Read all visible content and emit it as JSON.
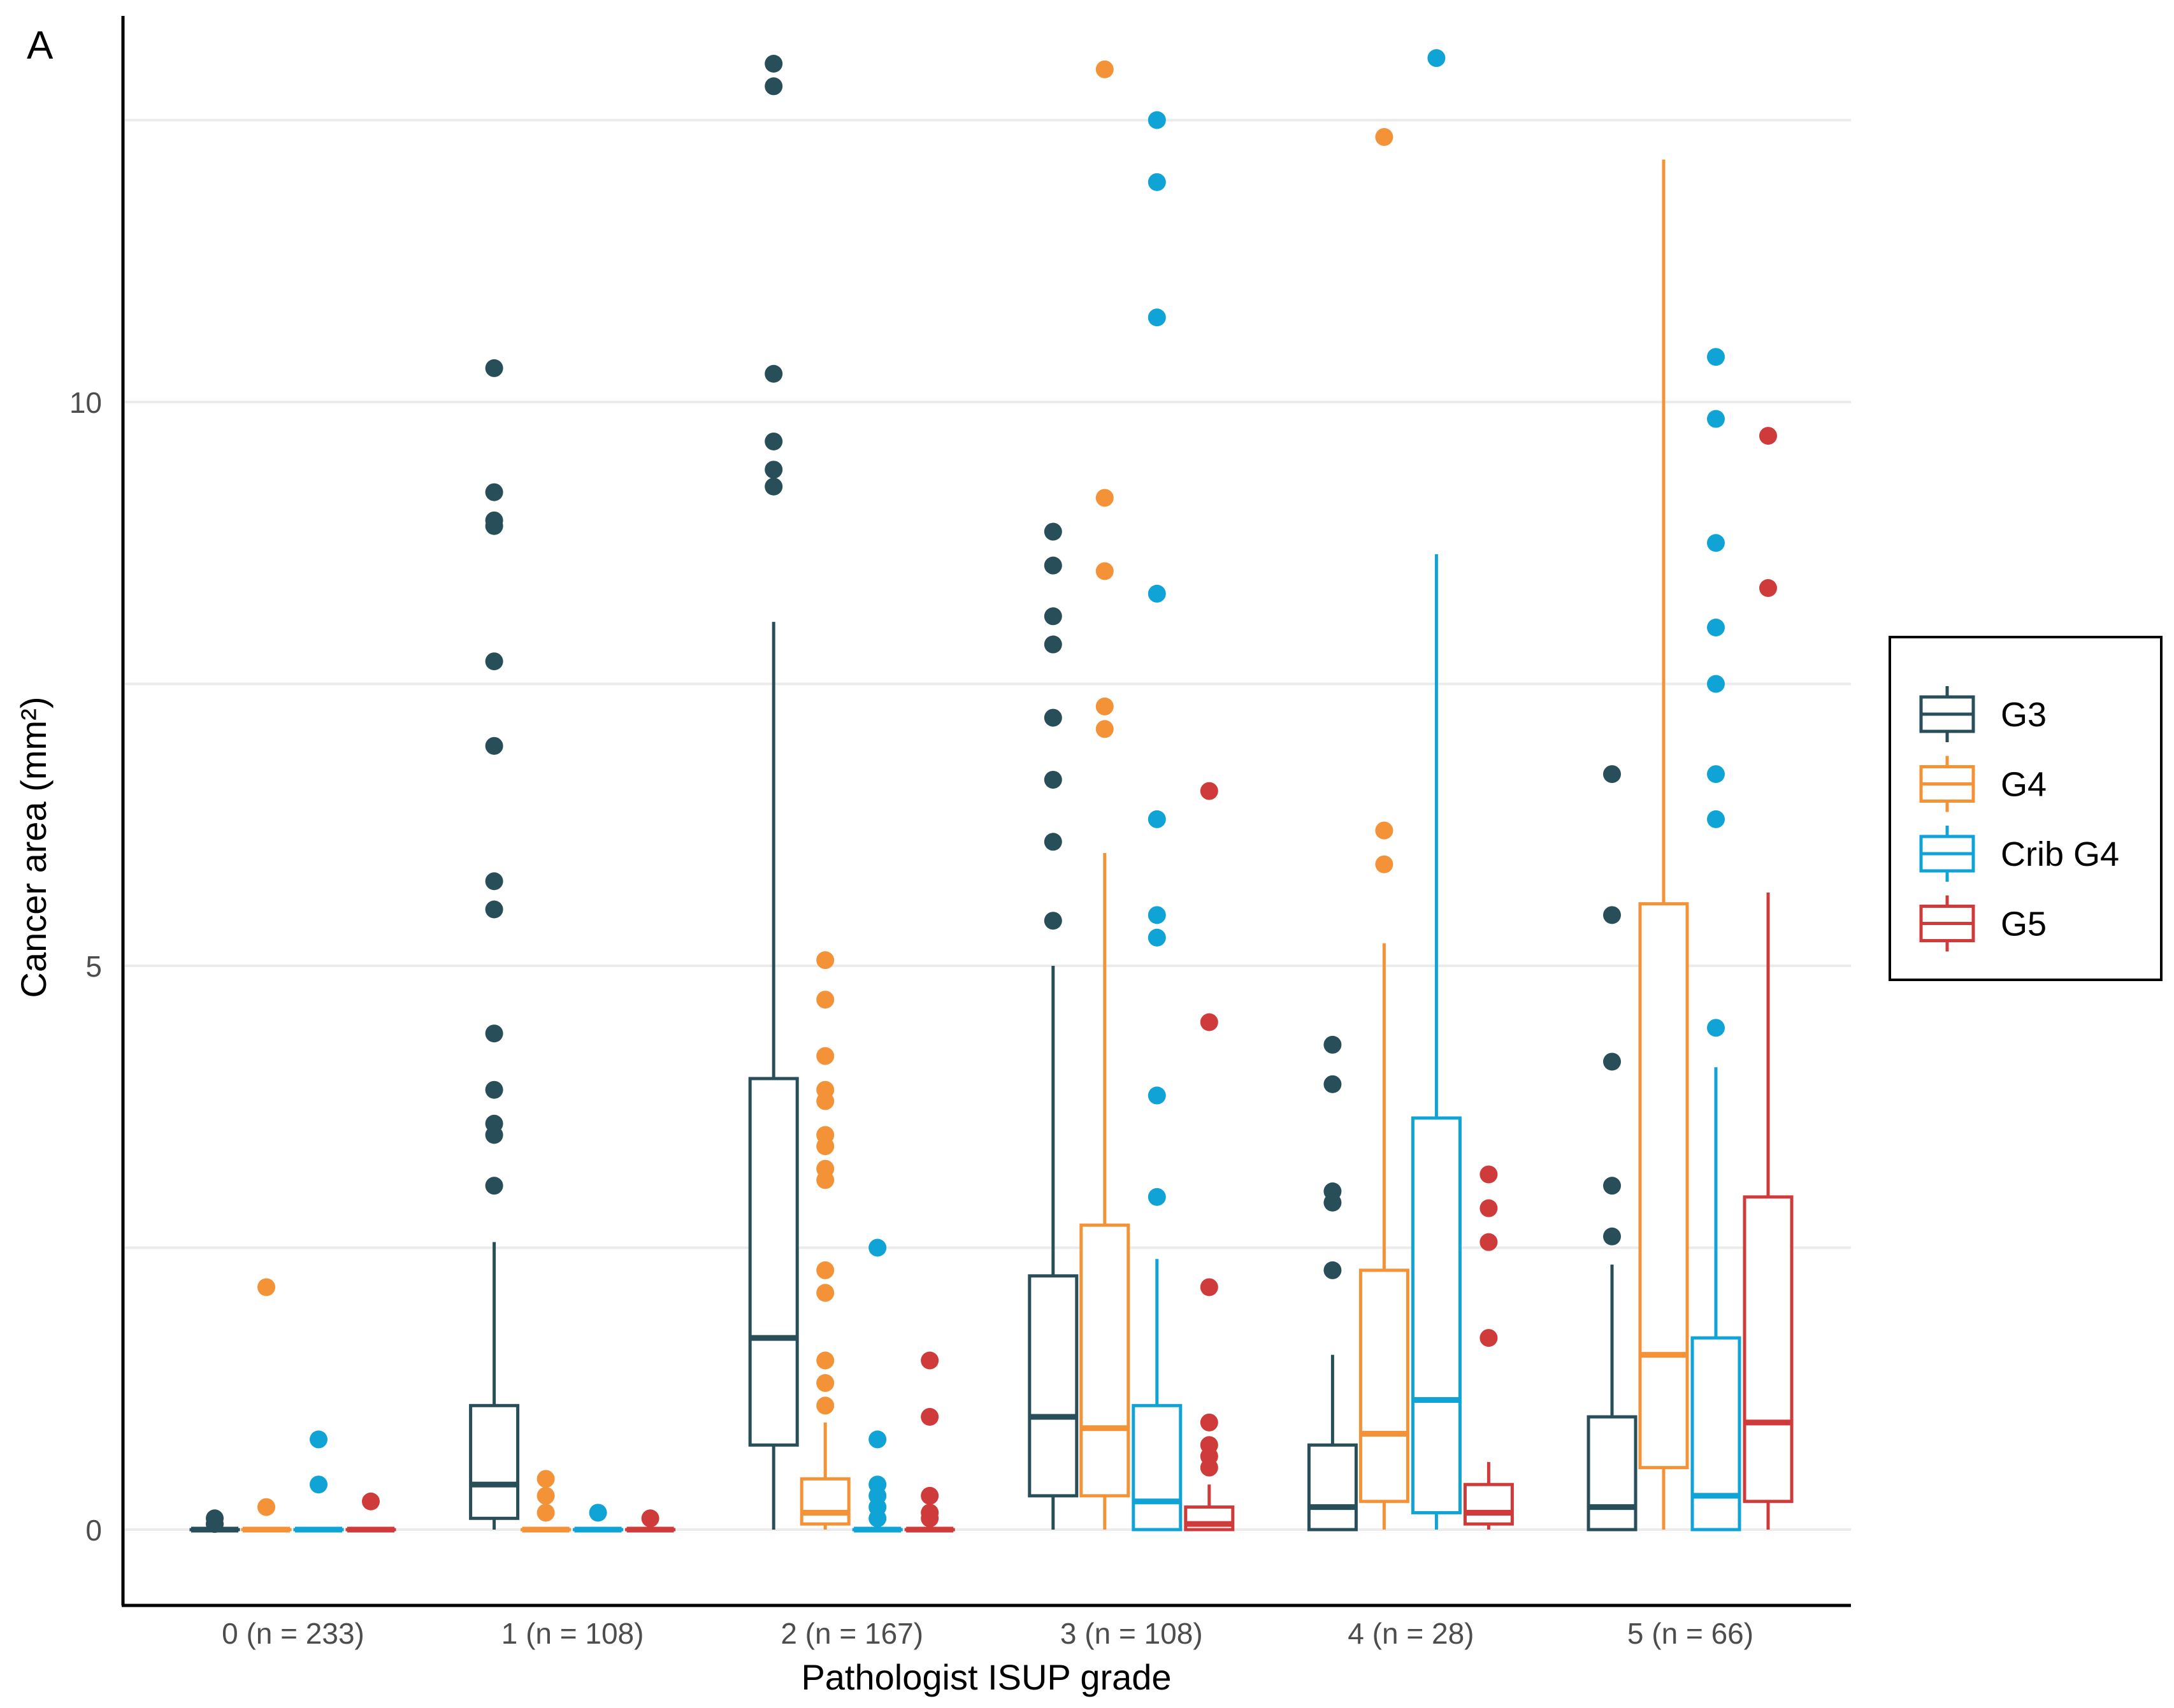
{
  "panel_label": "A",
  "chart_data": {
    "type": "boxplot",
    "title": "",
    "xlabel": "Pathologist ISUP grade",
    "ylabel": "Cancer area (mm²)",
    "ylim": [
      -0.6,
      13.2
    ],
    "yticks": [
      0,
      5,
      10
    ],
    "grid": true,
    "legend_position": "right",
    "categories": [
      "0 (n = 233)",
      "1 (n = 108)",
      "2 (n = 167)",
      "3 (n = 108)",
      "4 (n = 28)",
      "5 (n = 66)"
    ],
    "series": [
      {
        "name": "G3",
        "color": "#274e59",
        "boxes": [
          {
            "lower_whisker": 0,
            "q1": 0,
            "median": 0,
            "q3": 0,
            "upper_whisker": 0,
            "outliers": [
              0.1,
              0.05
            ]
          },
          {
            "lower_whisker": 0,
            "q1": 0.1,
            "median": 0.4,
            "q3": 1.1,
            "upper_whisker": 2.55,
            "outliers": [
              3.05,
              3.5,
              3.6,
              3.9,
              4.4,
              5.5,
              5.75,
              6.95,
              7.7,
              8.9,
              8.95,
              9.2,
              10.3
            ]
          },
          {
            "lower_whisker": 0,
            "q1": 0.75,
            "median": 1.7,
            "q3": 4.0,
            "upper_whisker": 8.05,
            "outliers": [
              9.25,
              9.4,
              9.65,
              10.25,
              12.8,
              13.0
            ]
          },
          {
            "lower_whisker": 0,
            "q1": 0.3,
            "median": 1.0,
            "q3": 2.25,
            "upper_whisker": 5.0,
            "outliers": [
              5.4,
              6.1,
              6.65,
              7.2,
              7.85,
              8.1,
              8.55,
              8.85
            ]
          },
          {
            "lower_whisker": 0,
            "q1": 0,
            "median": 0.2,
            "q3": 0.75,
            "upper_whisker": 1.55,
            "outliers": [
              2.3,
              2.9,
              3.0,
              3.95,
              4.3
            ]
          },
          {
            "lower_whisker": 0,
            "q1": 0,
            "median": 0.2,
            "q3": 1.0,
            "upper_whisker": 2.35,
            "outliers": [
              2.6,
              3.05,
              4.15,
              5.45,
              6.7
            ]
          }
        ]
      },
      {
        "name": "G4",
        "color": "#f39237",
        "boxes": [
          {
            "lower_whisker": 0,
            "q1": 0,
            "median": 0,
            "q3": 0,
            "upper_whisker": 0,
            "outliers": [
              0.2,
              2.15
            ]
          },
          {
            "lower_whisker": 0,
            "q1": 0,
            "median": 0,
            "q3": 0,
            "upper_whisker": 0,
            "outliers": [
              0.15,
              0.3,
              0.45
            ]
          },
          {
            "lower_whisker": 0,
            "q1": 0.05,
            "median": 0.15,
            "q3": 0.45,
            "upper_whisker": 0.95,
            "outliers": [
              1.1,
              1.3,
              1.5,
              2.1,
              2.3,
              3.1,
              3.2,
              3.4,
              3.5,
              3.8,
              3.9,
              4.2,
              4.7,
              5.05
            ]
          },
          {
            "lower_whisker": 0,
            "q1": 0.3,
            "median": 0.9,
            "q3": 2.7,
            "upper_whisker": 6.0,
            "outliers": [
              7.1,
              7.3,
              8.5,
              9.15,
              12.95
            ]
          },
          {
            "lower_whisker": 0,
            "q1": 0.25,
            "median": 0.85,
            "q3": 2.3,
            "upper_whisker": 5.2,
            "outliers": [
              5.9,
              6.2,
              12.35
            ]
          },
          {
            "lower_whisker": 0,
            "q1": 0.55,
            "median": 1.55,
            "q3": 5.55,
            "upper_whisker": 12.15,
            "outliers": []
          }
        ]
      },
      {
        "name": "Crib G4",
        "color": "#0fa3d6",
        "boxes": [
          {
            "lower_whisker": 0,
            "q1": 0,
            "median": 0,
            "q3": 0,
            "upper_whisker": 0,
            "outliers": [
              0.4,
              0.8
            ]
          },
          {
            "lower_whisker": 0,
            "q1": 0,
            "median": 0,
            "q3": 0,
            "upper_whisker": 0,
            "outliers": [
              0.15
            ]
          },
          {
            "lower_whisker": 0,
            "q1": 0,
            "median": 0,
            "q3": 0,
            "upper_whisker": 0,
            "outliers": [
              0.1,
              0.2,
              0.3,
              0.4,
              0.8,
              2.5
            ]
          },
          {
            "lower_whisker": 0,
            "q1": 0,
            "median": 0.25,
            "q3": 1.1,
            "upper_whisker": 2.4,
            "outliers": [
              2.95,
              3.85,
              5.25,
              5.45,
              6.3,
              8.3,
              10.75,
              11.95,
              12.5
            ]
          },
          {
            "lower_whisker": 0,
            "q1": 0.15,
            "median": 1.15,
            "q3": 3.65,
            "upper_whisker": 8.65,
            "outliers": [
              13.05
            ]
          },
          {
            "lower_whisker": 0,
            "q1": 0,
            "median": 0.3,
            "q3": 1.7,
            "upper_whisker": 4.1,
            "outliers": [
              4.45,
              6.3,
              6.7,
              7.5,
              8.0,
              8.75,
              9.85,
              10.4
            ]
          }
        ]
      },
      {
        "name": "G5",
        "color": "#cf3a3a",
        "boxes": [
          {
            "lower_whisker": 0,
            "q1": 0,
            "median": 0,
            "q3": 0,
            "upper_whisker": 0,
            "outliers": [
              0.25
            ]
          },
          {
            "lower_whisker": 0,
            "q1": 0,
            "median": 0,
            "q3": 0,
            "upper_whisker": 0,
            "outliers": [
              0.1
            ]
          },
          {
            "lower_whisker": 0,
            "q1": 0,
            "median": 0,
            "q3": 0,
            "upper_whisker": 0,
            "outliers": [
              0.1,
              0.15,
              0.3,
              1.0,
              1.5
            ]
          },
          {
            "lower_whisker": 0,
            "q1": 0,
            "median": 0.05,
            "q3": 0.2,
            "upper_whisker": 0.4,
            "outliers": [
              0.55,
              0.65,
              0.75,
              0.95,
              2.15,
              4.5,
              6.55
            ]
          },
          {
            "lower_whisker": 0,
            "q1": 0.05,
            "median": 0.15,
            "q3": 0.4,
            "upper_whisker": 0.6,
            "outliers": [
              1.7,
              2.55,
              2.85,
              3.15
            ]
          },
          {
            "lower_whisker": 0,
            "q1": 0.25,
            "median": 0.95,
            "q3": 2.95,
            "upper_whisker": 5.65,
            "outliers": [
              8.35,
              9.7
            ]
          }
        ]
      }
    ]
  }
}
